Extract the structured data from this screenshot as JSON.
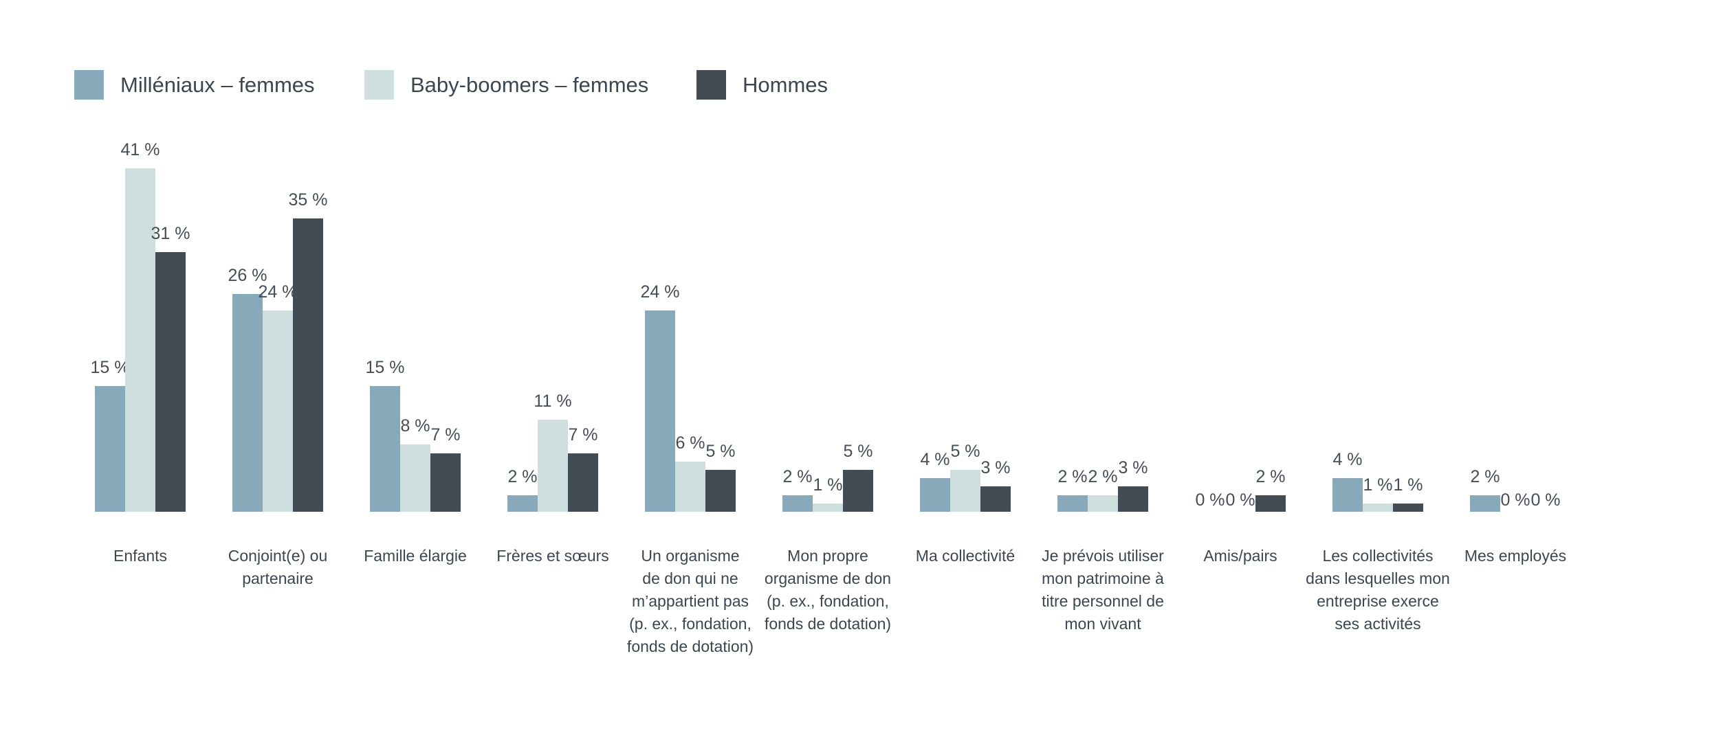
{
  "legend": {
    "items": [
      {
        "label": "Milléniaux – femmes"
      },
      {
        "label": "Baby-boomers – femmes"
      },
      {
        "label": "Hommes"
      }
    ]
  },
  "chart_data": {
    "type": "bar",
    "title": "",
    "xlabel": "",
    "ylabel": "",
    "ylim": [
      0,
      45
    ],
    "grid": false,
    "legend_position": "top-left",
    "value_labels": true,
    "value_suffix": " %",
    "categories": [
      "Enfants",
      "Conjoint(e) ou\npartenaire",
      "Famille élargie",
      "Frères et sœurs",
      "Un organisme\nde don qui ne\nm’appartient pas\n(p. ex., fondation,\nfonds de dotation)",
      "Mon propre\norganisme de don\n(p. ex., fondation,\nfonds de dotation)",
      "Ma collectivité",
      "Je prévois utiliser\nmon patrimoine à\ntitre personnel de\nmon vivant",
      "Amis/pairs",
      "Les collectivités\ndans lesquelles mon\nentreprise exerce\nses activités",
      "Mes employés"
    ],
    "series": [
      {
        "name": "Milléniaux – femmes",
        "color": "#88a9ba",
        "values": [
          15,
          26,
          15,
          2,
          24,
          2,
          4,
          2,
          0,
          4,
          2
        ]
      },
      {
        "name": "Baby-boomers – femmes",
        "color": "#cfdede",
        "values": [
          41,
          24,
          8,
          11,
          6,
          1,
          5,
          2,
          0,
          1,
          0
        ]
      },
      {
        "name": "Hommes",
        "color": "#434b54",
        "values": [
          31,
          35,
          7,
          7,
          5,
          5,
          3,
          3,
          2,
          1,
          0
        ]
      }
    ]
  },
  "colors": {
    "background": "#ffffff",
    "text": "#3c4650"
  }
}
